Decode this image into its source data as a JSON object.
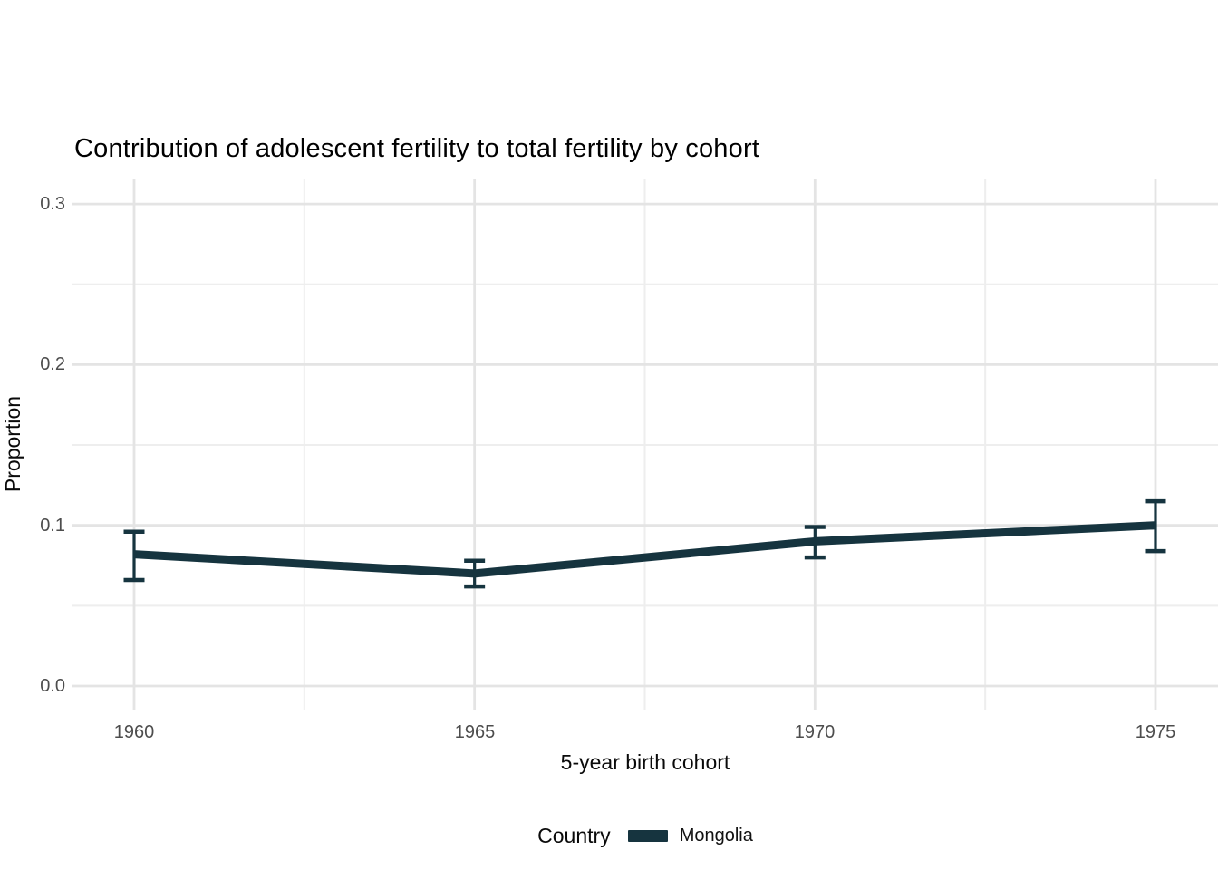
{
  "title": "Contribution of adolescent fertility to total fertility by cohort",
  "colors": {
    "background": "#ffffff",
    "series_mongolia": "#16343f",
    "grid_major": "#e4e4e4",
    "grid_minor": "#eeeeee",
    "tick_label": "#4d4d4d",
    "text": "#000000"
  },
  "chart_data": {
    "type": "line",
    "title": "Contribution of adolescent fertility to total fertility by cohort",
    "xlabel": "5-year birth cohort",
    "ylabel": "Proportion",
    "x_tick_labels": [
      "1960",
      "1965",
      "1970",
      "1975"
    ],
    "y_tick_labels": [
      "0.0",
      "0.1",
      "0.2",
      "0.3"
    ],
    "xlim": [
      1959.1,
      1975.9
    ],
    "ylim": [
      0.0,
      0.325
    ],
    "grid": "major and minor gridlines, no axis lines, white background",
    "legend": {
      "title": "Country",
      "position": "bottom-center",
      "entries": [
        {
          "label": "Mongolia",
          "color": "#16343f"
        }
      ]
    },
    "series": [
      {
        "name": "Mongolia",
        "color": "#16343f",
        "style": "thick line with T-capped error bars at each point",
        "x": [
          1960,
          1965,
          1970,
          1975
        ],
        "y": [
          0.082,
          0.07,
          0.09,
          0.1
        ],
        "ymin": [
          0.066,
          0.062,
          0.08,
          0.084
        ],
        "ymax": [
          0.096,
          0.078,
          0.099,
          0.115
        ]
      }
    ]
  }
}
